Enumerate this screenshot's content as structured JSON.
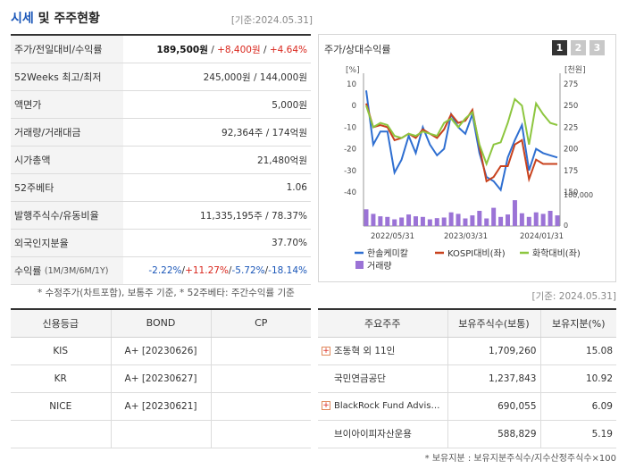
{
  "header": {
    "title_main": "시세",
    "title_rest": " 및 주주현황",
    "base_date": "[기준:2024.05.31]"
  },
  "info_rows": [
    {
      "label": "주가/전일대비/수익률",
      "value_a": "189,500원",
      "value_b": " / ",
      "value_c": "+8,400원",
      "value_d": " / ",
      "value_e": "+4.64%"
    },
    {
      "label": "52Weeks 최고/최저",
      "value": "245,000원 / 144,000원"
    },
    {
      "label": "액면가",
      "value": "5,000원"
    },
    {
      "label": "거래량/거래대금",
      "value": "92,364주 / 174억원"
    },
    {
      "label": "시가총액",
      "value": "21,480억원"
    },
    {
      "label": "52주베타",
      "value": "1.06"
    },
    {
      "label": "발행주식수/유동비율",
      "value": "11,335,195주 / 78.37%"
    },
    {
      "label": "외국인지분율",
      "value": "37.70%"
    }
  ],
  "returns_row": {
    "label": "수익률",
    "label_small": "(1M/3M/6M/1Y)",
    "v1": "-2.22%",
    "v2": "+11.27%",
    "v3": "-5.72%",
    "v4": "-18.14%",
    "sep": "/"
  },
  "info_note": "* 수정주가(차트포함), 보통주 기준, * 52주베타: 주간수익률 기준",
  "chart_panel": {
    "title": "주가/상대수익률",
    "pages": [
      "1",
      "2",
      "3"
    ],
    "left_unit": "[%]",
    "right_unit": "[천원]"
  },
  "chart_data": {
    "type": "line",
    "x_ticks": [
      "2022/05/31",
      "2023/03/31",
      "2024/01/31"
    ],
    "y_left_ticks": [
      10,
      0,
      -10,
      -20,
      -30,
      -40
    ],
    "y_right_ticks": [
      275,
      250,
      225,
      200,
      175,
      150
    ],
    "volume_ticks": [
      "100,000",
      "0"
    ],
    "ylim_left": [
      -40,
      10
    ],
    "ylim_right": [
      150,
      275
    ],
    "legend": [
      "한솔케미칼",
      "KOSPI대비(좌)",
      "화학대비(좌)",
      "거래량"
    ],
    "colors": {
      "price": "#2f6fd1",
      "kospi": "#c8421e",
      "chem": "#8dc63f",
      "volume": "#9b73d6"
    },
    "series": [
      {
        "name": "한솔케미칼",
        "axis": "left",
        "values": [
          7,
          -18,
          -12,
          -12,
          -31,
          -25,
          -14,
          -22,
          -10,
          -18,
          -23,
          -20,
          -4,
          -10,
          -13,
          -4,
          -22,
          -33,
          -35,
          -39,
          -24,
          -16,
          -9,
          -30,
          -20,
          -22,
          -23,
          -24
        ]
      },
      {
        "name": "KOSPI대비(좌)",
        "axis": "left",
        "values": [
          1,
          -10,
          -9,
          -10,
          -16,
          -15,
          -13,
          -15,
          -11,
          -13,
          -15,
          -11,
          -4,
          -8,
          -7,
          -2,
          -19,
          -35,
          -33,
          -28,
          -28,
          -18,
          -16,
          -34,
          -25,
          -27,
          -27,
          -27
        ]
      },
      {
        "name": "화학대비(좌)",
        "axis": "left",
        "values": [
          0,
          -10,
          -8,
          -9,
          -14,
          -15,
          -13,
          -14,
          -12,
          -13,
          -14,
          -8,
          -6,
          -10,
          -6,
          -3,
          -18,
          -27,
          -18,
          -17,
          -8,
          3,
          0,
          -18,
          1,
          -4,
          -8,
          -9
        ]
      },
      {
        "name": "거래량",
        "axis": "volume",
        "values": [
          55,
          40,
          32,
          30,
          22,
          28,
          38,
          32,
          30,
          22,
          26,
          28,
          45,
          40,
          25,
          35,
          50,
          25,
          60,
          30,
          38,
          85,
          42,
          30,
          45,
          40,
          50,
          35
        ]
      }
    ]
  },
  "base_date_2": "[기준: 2024.05.31]",
  "credit_table": {
    "headers": [
      "신용등급",
      "BOND",
      "CP"
    ],
    "rows": [
      {
        "agency": "KIS",
        "bond": "A+  [20230626]",
        "cp": ""
      },
      {
        "agency": "KR",
        "bond": "A+  [20230627]",
        "cp": ""
      },
      {
        "agency": "NICE",
        "bond": "A+  [20230621]",
        "cp": ""
      }
    ]
  },
  "holder_table": {
    "headers": [
      "주요주주",
      "보유주식수(보통)",
      "보유지분(%)"
    ],
    "rows": [
      {
        "name": "조동혁 외 11인",
        "shares": "1,709,260",
        "pct": "15.08",
        "plus": true
      },
      {
        "name": "국민연금공단",
        "shares": "1,237,843",
        "pct": "10.92",
        "plus": false
      },
      {
        "name": "BlackRock Fund Advis…",
        "shares": "690,055",
        "pct": "6.09",
        "plus": true
      },
      {
        "name": "브이아이피자산운용",
        "shares": "588,829",
        "pct": "5.19",
        "plus": false
      }
    ]
  },
  "holder_note": "* 보유지분 : 보유지분주식수/지수산정주식수×100"
}
